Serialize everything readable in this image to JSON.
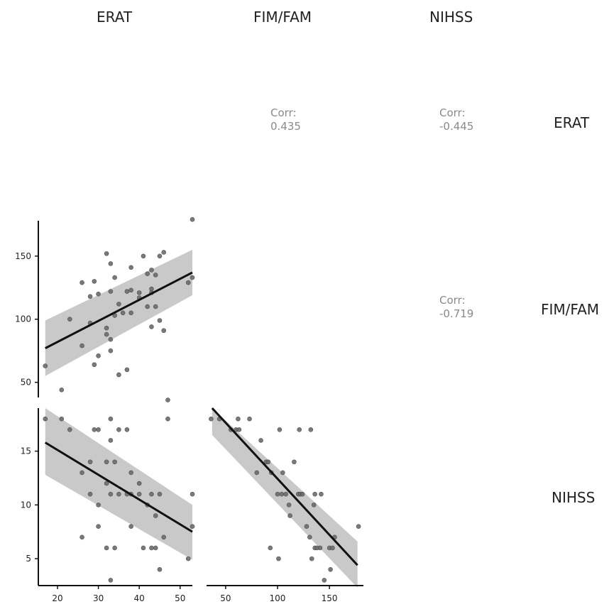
{
  "variables": [
    "ERAT",
    "FIM/FAM",
    "NIHSS"
  ],
  "corr_label": "Corr:",
  "correlations": {
    "ERAT_FIMFAM": "0.435",
    "ERAT_NIHSS": "-0.445",
    "FIMFAM_NIHSS": "-0.719"
  },
  "colors": {
    "point": "#6b6b6b",
    "line": "#111111",
    "band": "#bfbfbf",
    "axis": "#111111",
    "text": "#222222"
  },
  "chart_data": [
    {
      "type": "scatter",
      "panel": "FIM/FAM vs ERAT",
      "xlabel": "",
      "ylabel": "",
      "xlim": [
        16,
        53
      ],
      "ylim": [
        38,
        178
      ],
      "x_ticks": [],
      "y_ticks": [
        50,
        100,
        150
      ],
      "fit": {
        "x": [
          17,
          53
        ],
        "y": [
          77,
          137
        ],
        "band_lower": [
          55,
          119
        ],
        "band_upper": [
          99,
          155
        ]
      },
      "points": [
        [
          17,
          63
        ],
        [
          21,
          44
        ],
        [
          23,
          100
        ],
        [
          26,
          79
        ],
        [
          26,
          129
        ],
        [
          28,
          97
        ],
        [
          28,
          118
        ],
        [
          29,
          64
        ],
        [
          29,
          130
        ],
        [
          30,
          71
        ],
        [
          30,
          120
        ],
        [
          32,
          88
        ],
        [
          32,
          93
        ],
        [
          32,
          152
        ],
        [
          33,
          75
        ],
        [
          33,
          84
        ],
        [
          33,
          122
        ],
        [
          33,
          144
        ],
        [
          34,
          103
        ],
        [
          34,
          133
        ],
        [
          35,
          56
        ],
        [
          35,
          112
        ],
        [
          36,
          105
        ],
        [
          37,
          60
        ],
        [
          37,
          122
        ],
        [
          38,
          105
        ],
        [
          38,
          123
        ],
        [
          38,
          141
        ],
        [
          40,
          117
        ],
        [
          40,
          121
        ],
        [
          41,
          150
        ],
        [
          42,
          110
        ],
        [
          42,
          136
        ],
        [
          43,
          94
        ],
        [
          43,
          121
        ],
        [
          43,
          124
        ],
        [
          43,
          139
        ],
        [
          44,
          110
        ],
        [
          44,
          135
        ],
        [
          45,
          99
        ],
        [
          45,
          150
        ],
        [
          46,
          91
        ],
        [
          46,
          153
        ],
        [
          47,
          36
        ],
        [
          52,
          129
        ],
        [
          53,
          133
        ],
        [
          53,
          179
        ]
      ]
    },
    {
      "type": "scatter",
      "panel": "NIHSS vs ERAT",
      "xlabel": "",
      "ylabel": "",
      "xlim": [
        16,
        53
      ],
      "ylim": [
        2.5,
        19
      ],
      "x_ticks": [
        20,
        30,
        40,
        50
      ],
      "y_ticks": [
        5,
        10,
        15
      ],
      "fit": {
        "x": [
          17,
          53
        ],
        "y": [
          15.8,
          7.5
        ],
        "band_lower": [
          12.8,
          4.9
        ],
        "band_upper": [
          19,
          10
        ]
      },
      "points": [
        [
          17,
          18
        ],
        [
          21,
          18
        ],
        [
          23,
          17
        ],
        [
          26,
          7
        ],
        [
          26,
          13
        ],
        [
          28,
          11
        ],
        [
          28,
          14
        ],
        [
          29,
          17
        ],
        [
          30,
          17
        ],
        [
          30,
          10
        ],
        [
          30,
          8
        ],
        [
          32,
          14
        ],
        [
          32,
          12
        ],
        [
          32,
          6
        ],
        [
          33,
          3
        ],
        [
          33,
          18
        ],
        [
          33,
          16
        ],
        [
          33,
          11
        ],
        [
          34,
          14
        ],
        [
          34,
          6
        ],
        [
          35,
          17
        ],
        [
          35,
          11
        ],
        [
          37,
          17
        ],
        [
          37,
          11
        ],
        [
          38,
          13
        ],
        [
          38,
          8
        ],
        [
          38,
          11
        ],
        [
          40,
          12
        ],
        [
          40,
          11
        ],
        [
          41,
          6
        ],
        [
          42,
          10
        ],
        [
          43,
          6
        ],
        [
          43,
          11
        ],
        [
          44,
          6
        ],
        [
          44,
          9
        ],
        [
          45,
          4
        ],
        [
          45,
          11
        ],
        [
          46,
          7
        ],
        [
          47,
          18
        ],
        [
          52,
          5
        ],
        [
          53,
          11
        ],
        [
          53,
          8
        ]
      ]
    },
    {
      "type": "scatter",
      "panel": "NIHSS vs FIM/FAM",
      "xlabel": "",
      "ylabel": "",
      "xlim": [
        33,
        180
      ],
      "ylim": [
        2.5,
        19
      ],
      "x_ticks": [
        50,
        100,
        150
      ],
      "y_ticks": [],
      "fit": {
        "x": [
          37,
          177
        ],
        "y": [
          19,
          4.4
        ],
        "band_lower": [
          16.5,
          2.3
        ],
        "band_upper": [
          19,
          6.6
        ]
      },
      "points": [
        [
          36,
          18
        ],
        [
          44,
          18
        ],
        [
          55,
          17
        ],
        [
          60,
          17
        ],
        [
          63,
          17
        ],
        [
          62,
          18
        ],
        [
          73,
          18
        ],
        [
          80,
          13
        ],
        [
          84,
          16
        ],
        [
          89,
          14
        ],
        [
          91,
          14
        ],
        [
          93,
          6
        ],
        [
          94,
          13
        ],
        [
          100,
          11
        ],
        [
          101,
          5
        ],
        [
          102,
          17
        ],
        [
          104,
          11
        ],
        [
          105,
          13
        ],
        [
          108,
          11
        ],
        [
          111,
          10
        ],
        [
          112,
          9
        ],
        [
          116,
          14
        ],
        [
          120,
          11
        ],
        [
          121,
          17
        ],
        [
          122,
          11
        ],
        [
          124,
          11
        ],
        [
          128,
          8
        ],
        [
          131,
          7
        ],
        [
          132,
          17
        ],
        [
          133,
          5
        ],
        [
          135,
          10
        ],
        [
          136,
          11
        ],
        [
          136,
          6
        ],
        [
          138,
          6
        ],
        [
          141,
          6
        ],
        [
          142,
          11
        ],
        [
          145,
          3
        ],
        [
          150,
          6
        ],
        [
          151,
          4
        ],
        [
          153,
          6
        ],
        [
          155,
          7
        ],
        [
          178,
          8
        ]
      ]
    }
  ]
}
